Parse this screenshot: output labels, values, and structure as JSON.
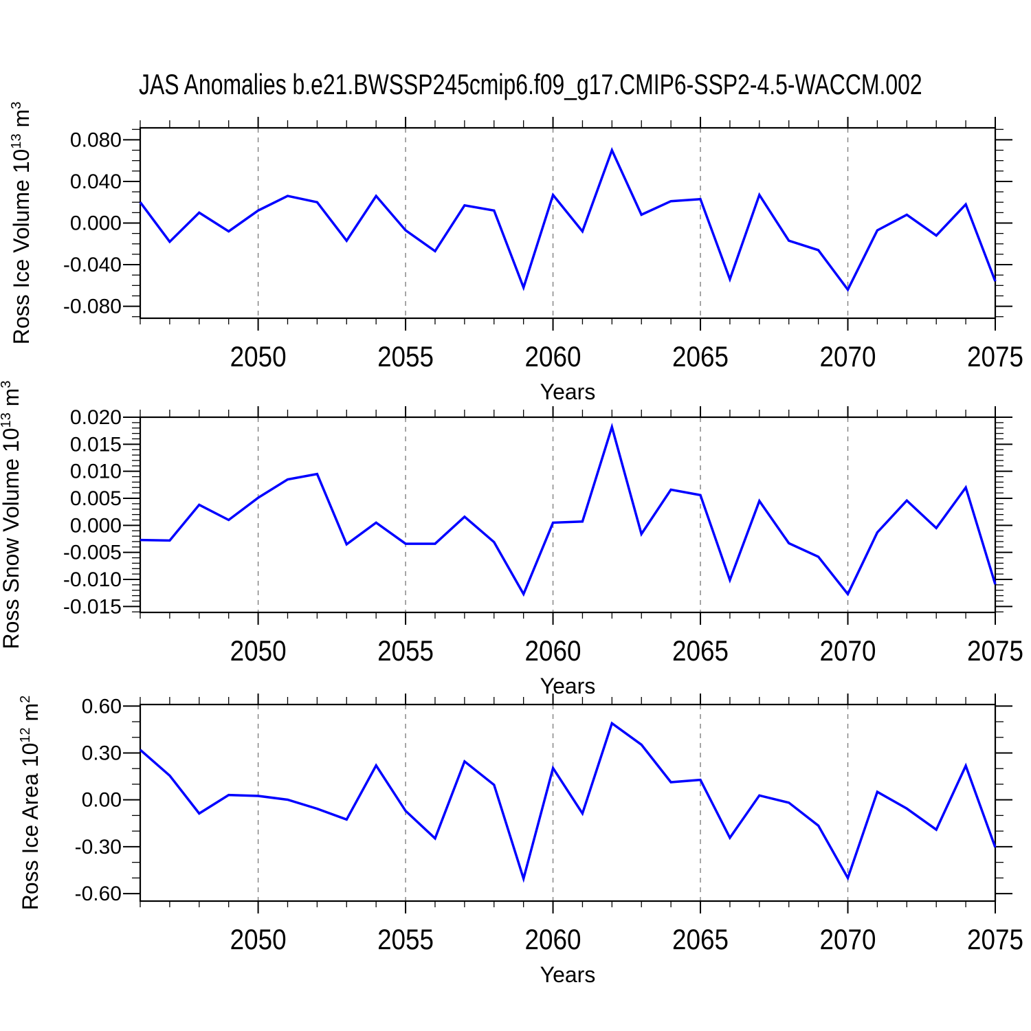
{
  "title": "JAS Anomalies b.e21.BWSSP245cmip6.f09_g17.CMIP6-SSP2-4.5-WACCM.002",
  "colors": {
    "line": "#0000ff",
    "axis": "#000000",
    "grid": "#808080",
    "text": "#000000",
    "background": "#ffffff"
  },
  "x_axis": {
    "label": "Years",
    "range": [
      2046,
      2075
    ],
    "years": [
      2046,
      2047,
      2048,
      2049,
      2050,
      2051,
      2052,
      2053,
      2054,
      2055,
      2056,
      2057,
      2058,
      2059,
      2060,
      2061,
      2062,
      2063,
      2064,
      2065,
      2066,
      2067,
      2068,
      2069,
      2070,
      2071,
      2072,
      2073,
      2074,
      2075
    ],
    "tick_years": [
      2050,
      2055,
      2060,
      2065,
      2070,
      2075
    ],
    "tick_labels": [
      "2050",
      "2055",
      "2060",
      "2065",
      "2070",
      "2075"
    ],
    "gridline_years": [
      2050,
      2055,
      2060,
      2065,
      2070
    ],
    "minor_step": 1
  },
  "chart_data": [
    {
      "type": "line",
      "name": "ross-ice-volume",
      "ylabel": "Ross Ice Volume 10^13 m^3",
      "ylabel_segments": [
        {
          "t": "Ross Ice Volume 10"
        },
        {
          "t": "13",
          "sup": true
        },
        {
          "t": " m"
        },
        {
          "t": "3",
          "sup": true
        }
      ],
      "xlabel": "Years",
      "ylim": [
        -0.0915,
        0.0915
      ],
      "ytick_values": [
        0.08,
        0.04,
        0.0,
        -0.04,
        -0.08
      ],
      "ytick_labels": [
        "0.080",
        "0.040",
        "0.000",
        "-0.040",
        "-0.080"
      ],
      "yminor_step": 0.01,
      "values": [
        0.02,
        -0.018,
        0.01,
        -0.008,
        0.012,
        0.026,
        0.02,
        -0.017,
        0.026,
        -0.007,
        -0.027,
        0.017,
        0.012,
        -0.062,
        0.027,
        -0.008,
        0.07,
        0.008,
        0.021,
        0.023,
        -0.054,
        0.027,
        -0.017,
        -0.026,
        -0.064,
        -0.007,
        0.008,
        -0.012,
        0.018,
        -0.056
      ]
    },
    {
      "type": "line",
      "name": "ross-snow-volume",
      "ylabel": "Ross Snow Volume 10^13 m^3",
      "ylabel_segments": [
        {
          "t": "Ross Snow Volume 10"
        },
        {
          "t": "13",
          "sup": true
        },
        {
          "t": " m"
        },
        {
          "t": "3",
          "sup": true
        }
      ],
      "xlabel": "Years",
      "ylim": [
        -0.0161,
        0.02
      ],
      "ytick_values": [
        0.02,
        0.015,
        0.01,
        0.005,
        0.0,
        -0.005,
        -0.01,
        -0.015
      ],
      "ytick_labels": [
        "0.020",
        "0.015",
        "0.010",
        "0.005",
        "0.000",
        "-0.005",
        "-0.010",
        "-0.015"
      ],
      "yminor_step": 0.001,
      "values": [
        -0.0027,
        -0.0028,
        0.0038,
        0.001,
        0.0051,
        0.0085,
        0.0095,
        -0.0035,
        0.0005,
        -0.0034,
        -0.0034,
        0.0016,
        -0.0031,
        -0.0127,
        0.0005,
        0.0007,
        0.0182,
        -0.0016,
        0.0066,
        0.0056,
        -0.0101,
        0.0045,
        -0.0033,
        -0.0058,
        -0.0127,
        -0.0013,
        0.0046,
        -0.0005,
        0.007,
        -0.0109
      ]
    },
    {
      "type": "line",
      "name": "ross-ice-area",
      "ylabel": "Ross Ice Area 10^12 m^2",
      "ylabel_segments": [
        {
          "t": "Ross Ice Area 10"
        },
        {
          "t": "12",
          "sup": true
        },
        {
          "t": " m"
        },
        {
          "t": "2",
          "sup": true
        }
      ],
      "xlabel": "Years",
      "ylim": [
        -0.648,
        0.61
      ],
      "ytick_values": [
        0.6,
        0.3,
        0.0,
        -0.3,
        -0.6
      ],
      "ytick_labels": [
        "0.60",
        "0.30",
        "0.00",
        "-0.30",
        "-0.60"
      ],
      "yminor_step": 0.1,
      "values": [
        0.32,
        0.155,
        -0.087,
        0.031,
        0.025,
        0.001,
        -0.057,
        -0.126,
        0.22,
        -0.071,
        -0.247,
        0.246,
        0.096,
        -0.504,
        0.203,
        -0.087,
        0.49,
        0.353,
        0.113,
        0.128,
        -0.243,
        0.028,
        -0.018,
        -0.165,
        -0.5,
        0.051,
        -0.056,
        -0.191,
        0.218,
        -0.304
      ]
    }
  ]
}
